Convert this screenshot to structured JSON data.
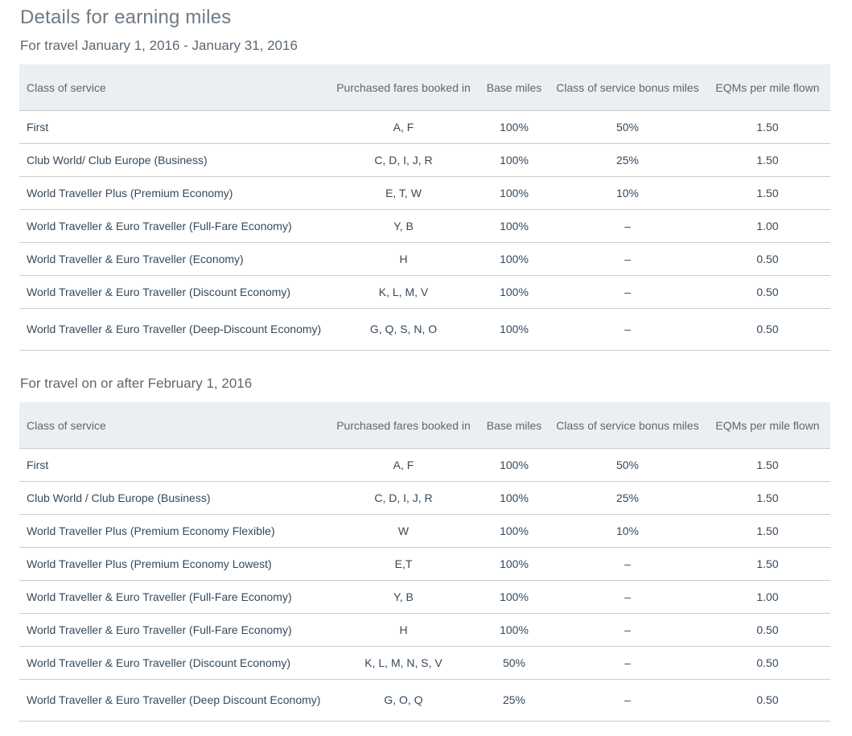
{
  "page": {
    "title": "Details for earning miles"
  },
  "columns": {
    "class_of_service": "Class of service",
    "fares": "Purchased fares booked in",
    "base_miles": "Base miles",
    "bonus_miles": "Class of service bonus miles",
    "eqms": "EQMs per mile flown"
  },
  "section1": {
    "title": "For travel January 1, 2016 - January 31, 2016",
    "rows": [
      {
        "class": "First",
        "fares": "A, F",
        "base": "100%",
        "bonus": "50%",
        "eqm": "1.50"
      },
      {
        "class": "Club World/ Club Europe (Business)",
        "fares": "C, D, I, J, R",
        "base": "100%",
        "bonus": "25%",
        "eqm": "1.50"
      },
      {
        "class": "World Traveller Plus (Premium Economy)",
        "fares": "E, T, W",
        "base": "100%",
        "bonus": "10%",
        "eqm": "1.50"
      },
      {
        "class": "World Traveller & Euro Traveller (Full-Fare Economy)",
        "fares": "Y, B",
        "base": "100%",
        "bonus": "–",
        "eqm": "1.00"
      },
      {
        "class": "World Traveller & Euro Traveller (Economy)",
        "fares": "H",
        "base": "100%",
        "bonus": "–",
        "eqm": "0.50"
      },
      {
        "class": "World Traveller & Euro Traveller (Discount Economy)",
        "fares": "K, L, M, V",
        "base": "100%",
        "bonus": "–",
        "eqm": "0.50"
      },
      {
        "class": "World Traveller & Euro Traveller (Deep-Discount Economy)",
        "fares": "G, Q, S, N, O",
        "base": "100%",
        "bonus": "–",
        "eqm": "0.50"
      }
    ]
  },
  "section2": {
    "title": "For travel on or after February 1, 2016",
    "rows": [
      {
        "class": "First",
        "fares": "A, F",
        "base": "100%",
        "bonus": "50%",
        "eqm": "1.50"
      },
      {
        "class": "Club World / Club Europe (Business)",
        "fares": "C, D, I, J, R",
        "base": "100%",
        "bonus": "25%",
        "eqm": "1.50"
      },
      {
        "class": "World Traveller Plus (Premium Economy Flexible)",
        "fares": "W",
        "base": "100%",
        "bonus": "10%",
        "eqm": "1.50"
      },
      {
        "class": "World Traveller Plus (Premium Economy Lowest)",
        "fares": "E,T",
        "base": "100%",
        "bonus": "–",
        "eqm": "1.50"
      },
      {
        "class": "World Traveller & Euro Traveller (Full-Fare Economy)",
        "fares": "Y, B",
        "base": "100%",
        "bonus": "–",
        "eqm": "1.00"
      },
      {
        "class": "World Traveller & Euro Traveller (Full-Fare Economy)",
        "fares": "H",
        "base": "100%",
        "bonus": "–",
        "eqm": "0.50"
      },
      {
        "class": "World Traveller & Euro Traveller (Discount Economy)",
        "fares": "K, L, M, N, S, V",
        "base": "50%",
        "bonus": "–",
        "eqm": "0.50"
      },
      {
        "class": "World Traveller & Euro Traveller (Deep Discount Economy)",
        "fares": "G, O, Q",
        "base": "25%",
        "bonus": "–",
        "eqm": "0.50"
      }
    ]
  }
}
